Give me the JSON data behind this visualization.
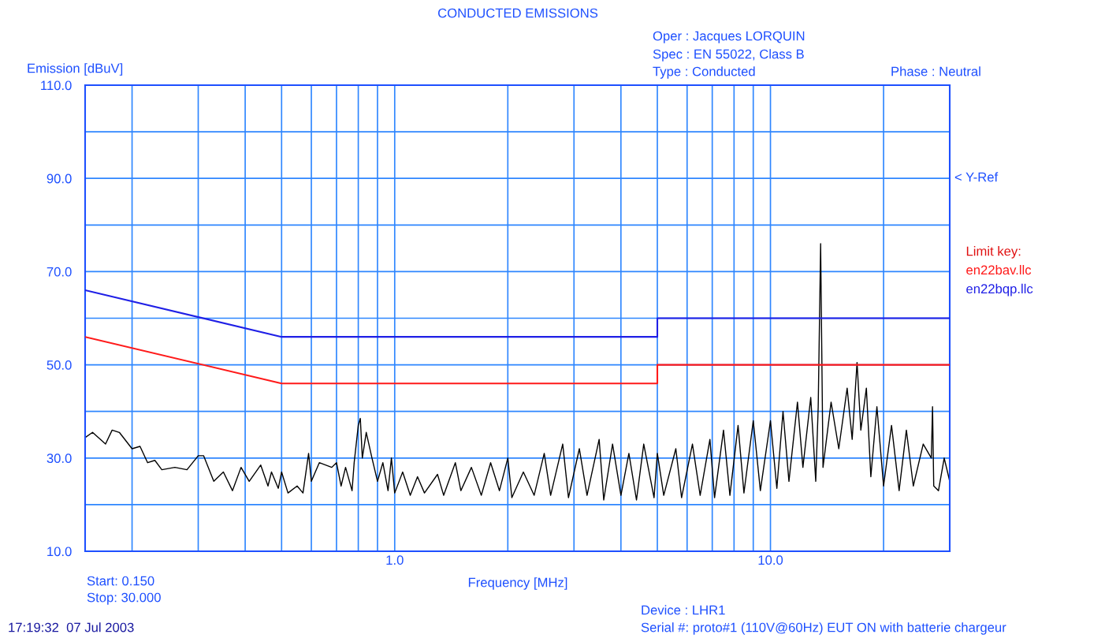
{
  "chart_data": {
    "type": "line",
    "title": "CONDUCTED EMISSIONS",
    "xlabel": "Frequency [MHz]",
    "ylabel": "Emission [dBuV]",
    "legend_title": "Limit key:",
    "log": "x",
    "grid": true,
    "legend": "right",
    "marker": "none",
    "line_style": "solid",
    "xlim": [
      0.15,
      30
    ],
    "ylim": [
      10,
      110
    ],
    "xticks": [
      {
        "value": 0.2,
        "label": null
      },
      {
        "value": 0.3,
        "label": null
      },
      {
        "value": 0.4,
        "label": null
      },
      {
        "value": 0.5,
        "label": null
      },
      {
        "value": 0.6,
        "label": null
      },
      {
        "value": 0.7,
        "label": null
      },
      {
        "value": 0.8,
        "label": null
      },
      {
        "value": 0.9,
        "label": null
      },
      {
        "value": 1,
        "label": "1.0"
      },
      {
        "value": 2,
        "label": null
      },
      {
        "value": 3,
        "label": null
      },
      {
        "value": 4,
        "label": null
      },
      {
        "value": 5,
        "label": null
      },
      {
        "value": 6,
        "label": null
      },
      {
        "value": 7,
        "label": null
      },
      {
        "value": 8,
        "label": null
      },
      {
        "value": 9,
        "label": null
      },
      {
        "value": 10,
        "label": "10.0"
      },
      {
        "value": 20,
        "label": null
      }
    ],
    "yticks": [
      {
        "value": 10,
        "label": "10.0"
      },
      {
        "value": 20,
        "label": null
      },
      {
        "value": 30,
        "label": "30.0"
      },
      {
        "value": 40,
        "label": null
      },
      {
        "value": 50,
        "label": "50.0"
      },
      {
        "value": 60,
        "label": null
      },
      {
        "value": 70,
        "label": "70.0"
      },
      {
        "value": 80,
        "label": null
      },
      {
        "value": 90,
        "label": "90.0"
      },
      {
        "value": 100,
        "label": null
      },
      {
        "value": 110,
        "label": "110.0"
      }
    ],
    "series": [
      {
        "color": "#000000",
        "x": [
          0.15,
          0.157,
          0.17,
          0.177,
          0.185,
          0.2,
          0.21,
          0.22,
          0.23,
          0.24,
          0.26,
          0.28,
          0.3,
          0.31,
          0.33,
          0.35,
          0.37,
          0.39,
          0.41,
          0.44,
          0.46,
          0.47,
          0.49,
          0.5,
          0.52,
          0.55,
          0.57,
          0.59,
          0.6,
          0.63,
          0.68,
          0.7,
          0.72,
          0.74,
          0.77,
          0.78,
          0.8,
          0.81,
          0.82,
          0.84,
          0.87,
          0.9,
          0.93,
          0.96,
          0.98,
          1.0,
          1.05,
          1.1,
          1.15,
          1.2,
          1.3,
          1.35,
          1.45,
          1.5,
          1.6,
          1.7,
          1.8,
          1.9,
          2.0,
          2.05,
          2.2,
          2.35,
          2.5,
          2.6,
          2.8,
          2.9,
          3.1,
          3.25,
          3.5,
          3.6,
          3.8,
          4.0,
          4.2,
          4.4,
          4.6,
          4.9,
          5.0,
          5.2,
          5.6,
          5.8,
          6.2,
          6.5,
          6.9,
          7.1,
          7.5,
          7.8,
          8.2,
          8.5,
          9.0,
          9.4,
          10.0,
          10.4,
          10.8,
          11.2,
          11.8,
          12.2,
          12.8,
          13.2,
          13.4,
          13.6,
          13.8,
          14.5,
          15.2,
          16.0,
          16.5,
          17.0,
          17.4,
          18.0,
          18.5,
          19.2,
          20.0,
          21,
          22,
          23,
          24,
          25.5,
          26.8,
          27.0,
          27.2,
          28,
          29,
          30
        ],
        "values": [
          34.4,
          35.5,
          33,
          36,
          35.5,
          32,
          32.5,
          29,
          29.5,
          27.5,
          28,
          27.5,
          30.5,
          30.5,
          25,
          27,
          23,
          28,
          25,
          28.5,
          24,
          27,
          23.5,
          27,
          22.5,
          24,
          22.5,
          31,
          25,
          29,
          28,
          29,
          24,
          28,
          23,
          29,
          37,
          38.5,
          30,
          35.5,
          30,
          25,
          29,
          23,
          30,
          22.5,
          27,
          22,
          26,
          22.5,
          26.5,
          22,
          29,
          23,
          28,
          22,
          29,
          23,
          30,
          21.5,
          27,
          22,
          31,
          22,
          33,
          21.5,
          32,
          22,
          34,
          21,
          33,
          22,
          31,
          21,
          33,
          21.5,
          31,
          22,
          32,
          21.5,
          33,
          22,
          34,
          21.5,
          36,
          22,
          37,
          22.5,
          38,
          23,
          38,
          23.5,
          40,
          25,
          42,
          28,
          43,
          25,
          41,
          76,
          28,
          42,
          32,
          45,
          34,
          50.5,
          36,
          45,
          26,
          41,
          24,
          37,
          23,
          36,
          24,
          33,
          30,
          41,
          24,
          23,
          30,
          25
        ]
      },
      {
        "name": "en22bav.llc",
        "color": "#ff1a1a",
        "x": [
          0.15,
          0.5,
          5,
          5,
          30
        ],
        "values": [
          56,
          46,
          46,
          50,
          50
        ]
      },
      {
        "name": "en22bqp.llc",
        "color": "#1f1fe6",
        "x": [
          0.15,
          0.5,
          5,
          5,
          30
        ],
        "values": [
          66,
          56,
          56,
          60,
          60
        ]
      }
    ],
    "annotations": [
      "< Y-Ref",
      "Oper : Jacques LORQUIN",
      "Spec : EN 55022, Class B",
      "Type : Conducted",
      "Phase : Neutral",
      "Start: 0.150",
      "Stop: 30.000",
      "Device : LHR1",
      "Serial #: proto#1 (110V@60Hz) EUT ON with batterie chargeur",
      "17:19:32  07 Jul 2003"
    ]
  }
}
